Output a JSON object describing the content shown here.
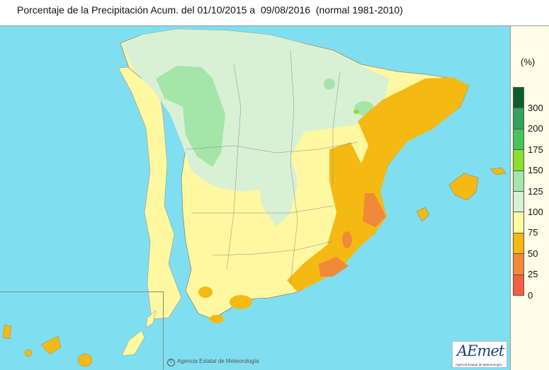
{
  "title": "Porcentaje de la Precipitación Acum. del 01/10/2015 a  09/08/2016  (normal 1981-2010)",
  "legend": {
    "unit": "(%)",
    "ticks": [
      "300",
      "200",
      "175",
      "150",
      "125",
      "100",
      "75",
      "50",
      "25",
      "0"
    ],
    "colors": [
      "#0b5e2a",
      "#35a060",
      "#46c35a",
      "#8cdf2a",
      "#a4e6a8",
      "#d8f1d4",
      "#fff8a0",
      "#f5b914",
      "#f08a3a",
      "#f55f3f"
    ]
  },
  "colors": {
    "sea": "#7fdff0",
    "legend_panel": "#fffde7",
    "range_100_125": "#d8f1d4",
    "range_75_100": "#fff8a0",
    "range_50_75": "#f5b914",
    "range_25_50": "#f08a3a",
    "range_125_150": "#a4e6a8",
    "portugal_land": "#fff8a0"
  },
  "footer": {
    "copyright": "Agencia Estatal de Meteorología",
    "logo": "AEmet",
    "logo_subtitle": "Agencia Estatal de Meteorología"
  }
}
